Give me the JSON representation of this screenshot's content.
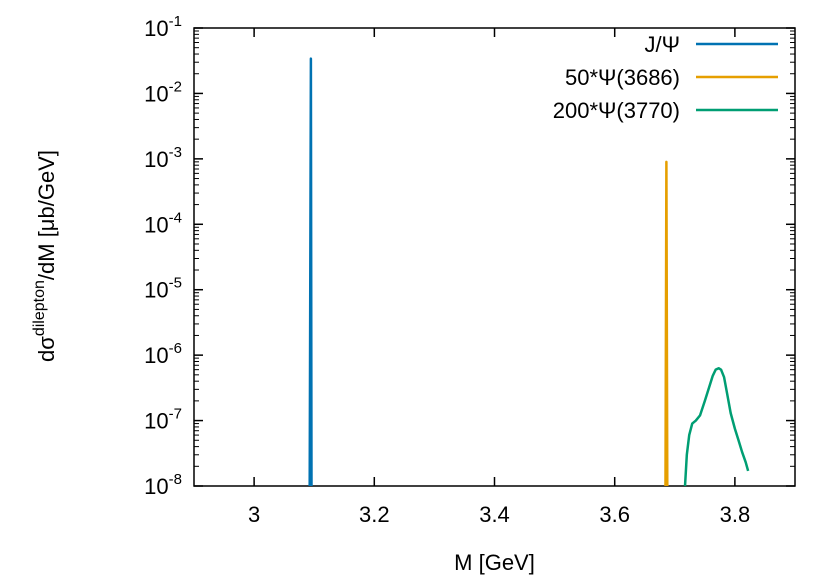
{
  "chart_data": {
    "type": "line",
    "xlabel": "M [GeV]",
    "ylabel": {
      "base": "dσ",
      "superscript": "dilepton",
      "rest": "/dM [μb/GeV]"
    },
    "xlim": [
      2.9,
      3.9
    ],
    "ylim": [
      1e-08,
      0.1
    ],
    "y_scale": "log",
    "x_ticks": [
      {
        "value": 3.0,
        "label": "3"
      },
      {
        "value": 3.2,
        "label": "3.2"
      },
      {
        "value": 3.4,
        "label": "3.4"
      },
      {
        "value": 3.6,
        "label": "3.6"
      },
      {
        "value": 3.8,
        "label": "3.8"
      }
    ],
    "y_ticks": [
      {
        "value": 1e-08,
        "base": "10",
        "exp": "-8"
      },
      {
        "value": 1e-07,
        "base": "10",
        "exp": "-7"
      },
      {
        "value": 1e-06,
        "base": "10",
        "exp": "-6"
      },
      {
        "value": 1e-05,
        "base": "10",
        "exp": "-5"
      },
      {
        "value": 0.0001,
        "base": "10",
        "exp": "-4"
      },
      {
        "value": 0.001,
        "base": "10",
        "exp": "-3"
      },
      {
        "value": 0.01,
        "base": "10",
        "exp": "-2"
      },
      {
        "value": 0.1,
        "base": "10",
        "exp": "-1"
      }
    ],
    "legend_position": "top-right",
    "grid": false,
    "series": [
      {
        "name": "J/Ψ",
        "color": "#0072b2",
        "points": [
          [
            3.0925,
            1e-08
          ],
          [
            3.0945,
            0.034
          ],
          [
            3.0955,
            1e-08
          ]
        ]
      },
      {
        "name": "50*Ψ(3686)",
        "color": "#e69f00",
        "points": [
          [
            3.6845,
            1e-08
          ],
          [
            3.686,
            0.0009
          ],
          [
            3.6875,
            1e-08
          ]
        ]
      },
      {
        "name": "200*Ψ(3770)",
        "color": "#009e73",
        "points": [
          [
            3.717,
            1e-08
          ],
          [
            3.72,
            3e-08
          ],
          [
            3.724,
            6e-08
          ],
          [
            3.729,
            9e-08
          ],
          [
            3.735,
            1e-07
          ],
          [
            3.742,
            1.2e-07
          ],
          [
            3.75,
            2e-07
          ],
          [
            3.757,
            3.2e-07
          ],
          [
            3.763,
            4.8e-07
          ],
          [
            3.768,
            6e-07
          ],
          [
            3.773,
            6.3e-07
          ],
          [
            3.777,
            6e-07
          ],
          [
            3.782,
            4.6e-07
          ],
          [
            3.787,
            2.6e-07
          ],
          [
            3.793,
            1.3e-07
          ],
          [
            3.8,
            7.5e-08
          ],
          [
            3.806,
            5e-08
          ],
          [
            3.812,
            3.3e-08
          ],
          [
            3.818,
            2.3e-08
          ],
          [
            3.822,
            1.7e-08
          ]
        ]
      }
    ]
  }
}
